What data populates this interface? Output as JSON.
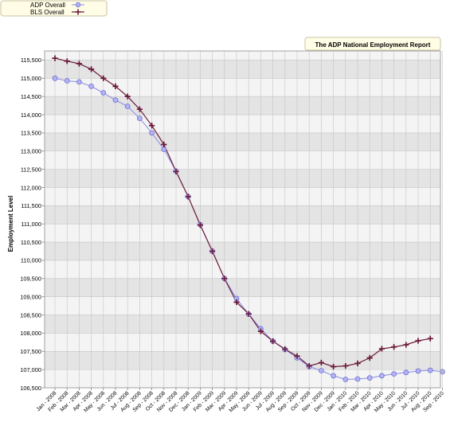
{
  "chart_data": {
    "type": "line",
    "title": "The ADP National Employment Report",
    "xlabel": "",
    "ylabel": "Employment Level",
    "ylim": [
      106500,
      115750
    ],
    "yticks": [
      106500,
      107000,
      107500,
      108000,
      108500,
      109000,
      109500,
      110000,
      110500,
      111000,
      111500,
      112000,
      112500,
      113000,
      113500,
      114000,
      114500,
      115000,
      115500
    ],
    "ytick_labels": [
      "106,500",
      "107,000",
      "107,500",
      "108,000",
      "108,500",
      "109,000",
      "109,500",
      "110,000",
      "110,500",
      "111,000",
      "111,500",
      "112,000",
      "112,500",
      "113,000",
      "113,500",
      "114,000",
      "114,500",
      "115,000",
      "115,500"
    ],
    "categories": [
      "Jan - 2008",
      "Feb - 2008",
      "Mar - 2008",
      "Apr - 2008",
      "May - 2008",
      "Jun - 2008",
      "Jul - 2008",
      "Aug - 2008",
      "Sep - 2008",
      "Oct - 2008",
      "Nov - 2008",
      "Dec - 2008",
      "Jan - 2009",
      "Feb - 2009",
      "Mar - 2009",
      "Apr - 2009",
      "May - 2009",
      "Jun - 2009",
      "Jul - 2009",
      "Aug - 2009",
      "Sep - 2009",
      "Oct - 2009",
      "Nov - 2009",
      "Dec - 2009",
      "Jan - 2010",
      "Feb - 2010",
      "Mar - 2010",
      "Apr - 2010",
      "May - 2010",
      "Jun - 2010",
      "Jul - 2010",
      "Aug - 2010",
      "Sep - 2010"
    ],
    "grid": true,
    "legend_position": "top-left",
    "series": [
      {
        "name": "ADP Overall",
        "color": "#8a8ae8",
        "marker": "circle",
        "values": [
          115000,
          114930,
          114900,
          114780,
          114600,
          114400,
          114230,
          113900,
          113500,
          113050,
          112450,
          111750,
          110980,
          110250,
          109500,
          108950,
          108520,
          108120,
          107780,
          107550,
          107320,
          107080,
          106970,
          106830,
          106730,
          106740,
          106770,
          106830,
          106880,
          106920,
          106960,
          106980,
          106940
        ]
      },
      {
        "name": "BLS Overall",
        "color": "#6b1a3a",
        "marker": "plus",
        "values": [
          115550,
          115470,
          115400,
          115250,
          115000,
          114780,
          114500,
          114150,
          113700,
          113180,
          112440,
          111750,
          110970,
          110250,
          109500,
          108850,
          108530,
          108050,
          107780,
          107560,
          107370,
          107100,
          107190,
          107080,
          107100,
          107170,
          107320,
          107570,
          107620,
          107680,
          107790,
          107850,
          null
        ]
      }
    ]
  }
}
